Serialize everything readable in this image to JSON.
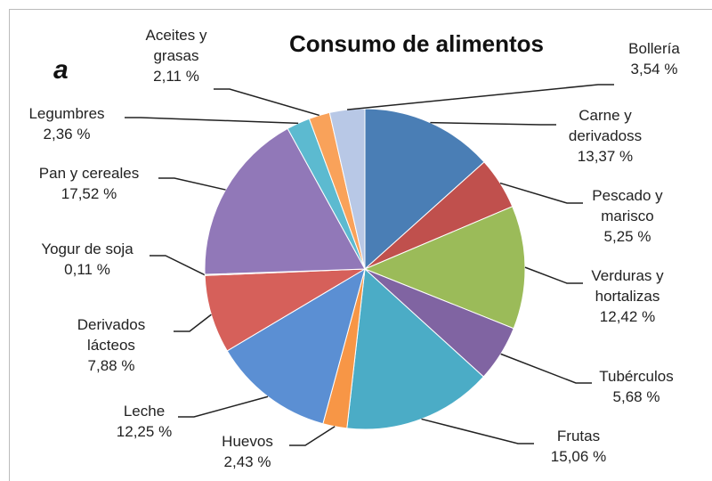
{
  "chart_data": {
    "type": "pie",
    "title": "Consumo de alimentos",
    "panel_label": "a",
    "categories": [
      "Carne y\nderivadoss",
      "Pescado y\nmarisco",
      "Verduras y\nhortalizas",
      "Tubérculos",
      "Frutas",
      "Huevos",
      "Leche",
      "Derivados\nlácteos",
      "Yogur de soja",
      "Pan y cereales",
      "Legumbres",
      "Aceites y\ngrasas",
      "Bollería"
    ],
    "values": [
      13.37,
      5.25,
      12.42,
      5.68,
      15.06,
      2.43,
      12.25,
      7.88,
      0.11,
      17.52,
      2.36,
      2.11,
      3.54
    ],
    "value_labels": [
      "13,37 %",
      "5,25 %",
      "12,42 %",
      "5,68 %",
      "15,06 %",
      "2,43 %",
      "12,25 %",
      "7,88 %",
      "0,11 %",
      "17,52 %",
      "2,36 %",
      "2,11 %",
      "3,54 %"
    ],
    "colors": [
      "#4a7eb5",
      "#c0504d",
      "#9bbb59",
      "#8064a2",
      "#4bacc6",
      "#f79646",
      "#5b8fd3",
      "#d6605a",
      "#a7c86a",
      "#9178b8",
      "#5cbad0",
      "#f9a25a",
      "#b8c8e6"
    ]
  }
}
